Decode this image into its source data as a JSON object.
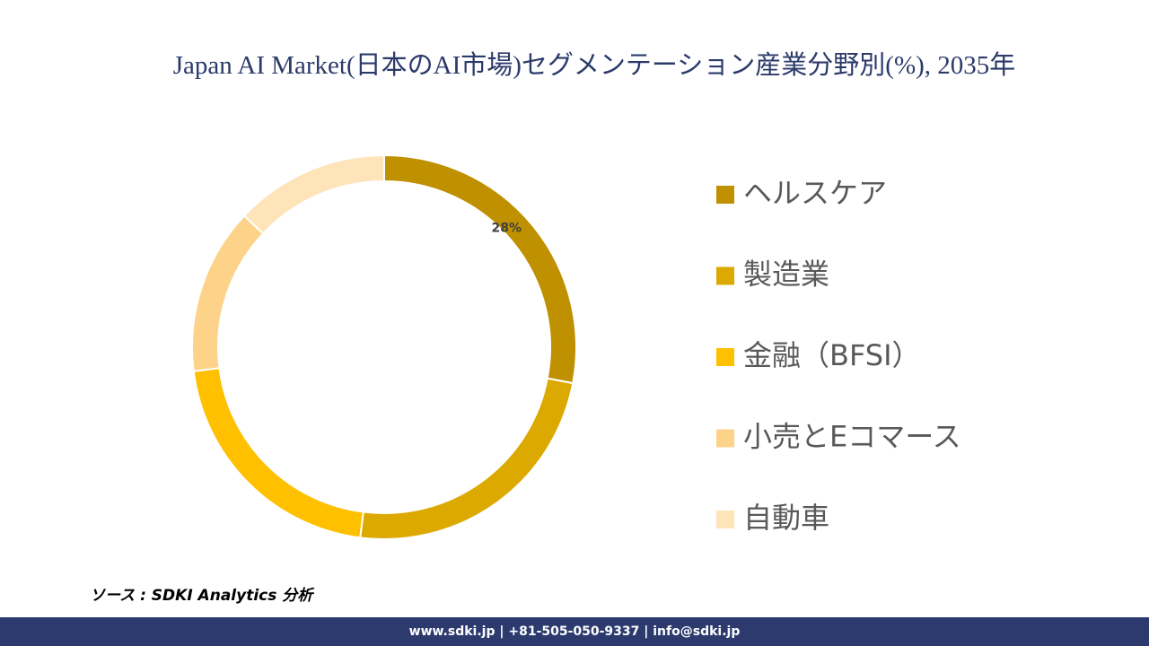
{
  "chart_data": {
    "type": "donut",
    "title": "Japan AI Market(日本のAI市場)セグメンテーション産業分野別(%), 2035年",
    "categories": [
      "ヘルスケア",
      "製造業",
      "金融（BFSI）",
      "小売とEコマース",
      "自動車"
    ],
    "values": [
      28,
      24,
      21,
      14,
      13
    ],
    "value_labels": [
      "28%",
      null,
      null,
      null,
      null
    ],
    "colors": [
      "#BF9000",
      "#DCA900",
      "#FFC000",
      "#FDD38A",
      "#FFE4BA"
    ],
    "legend": "right"
  },
  "source": "ソース : SDKI Analytics 分析",
  "footer": "www.sdki.jp | +81-505-050-9337 | info@sdki.jp"
}
